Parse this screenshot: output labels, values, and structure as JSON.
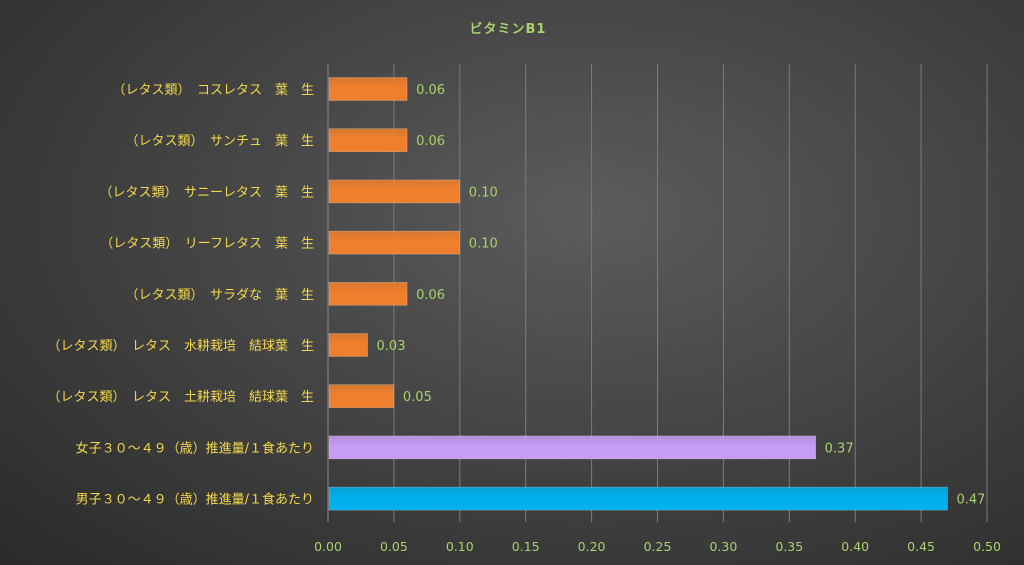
{
  "chart_data": {
    "type": "bar",
    "orientation": "horizontal",
    "title": "ビタミンB1",
    "xlim": [
      0,
      0.5
    ],
    "x_ticks": [
      "0.00",
      "0.05",
      "0.10",
      "0.15",
      "0.20",
      "0.25",
      "0.30",
      "0.35",
      "0.40",
      "0.45",
      "0.50"
    ],
    "grid": true,
    "legend": "none",
    "categories": [
      "（レタス類）　コスレタス　葉　生",
      "（レタス類）　サンチュ　葉　生",
      "（レタス類）　サニーレタス　葉　生",
      "（レタス類）　リーフレタス　葉　生",
      "（レタス類）　サラダな　葉　生",
      "（レタス類）　レタス　水耕栽培　結球葉　生",
      "（レタス類）　レタス　土耕栽培　結球葉　生",
      "女子３０～４９（歳）推進量/１食あたり",
      "男子３０～４９（歳）推進量/１食あたり"
    ],
    "values": [
      0.06,
      0.06,
      0.1,
      0.1,
      0.06,
      0.03,
      0.05,
      0.37,
      0.47
    ],
    "value_labels": [
      "0.06",
      "0.06",
      "0.10",
      "0.10",
      "0.06",
      "0.03",
      "0.05",
      "0.37",
      "0.47"
    ],
    "colors": [
      "#f07f2d",
      "#f07f2d",
      "#f07f2d",
      "#f07f2d",
      "#f07f2d",
      "#f07f2d",
      "#f07f2d",
      "#c79cf5",
      "#00b0ee"
    ]
  }
}
